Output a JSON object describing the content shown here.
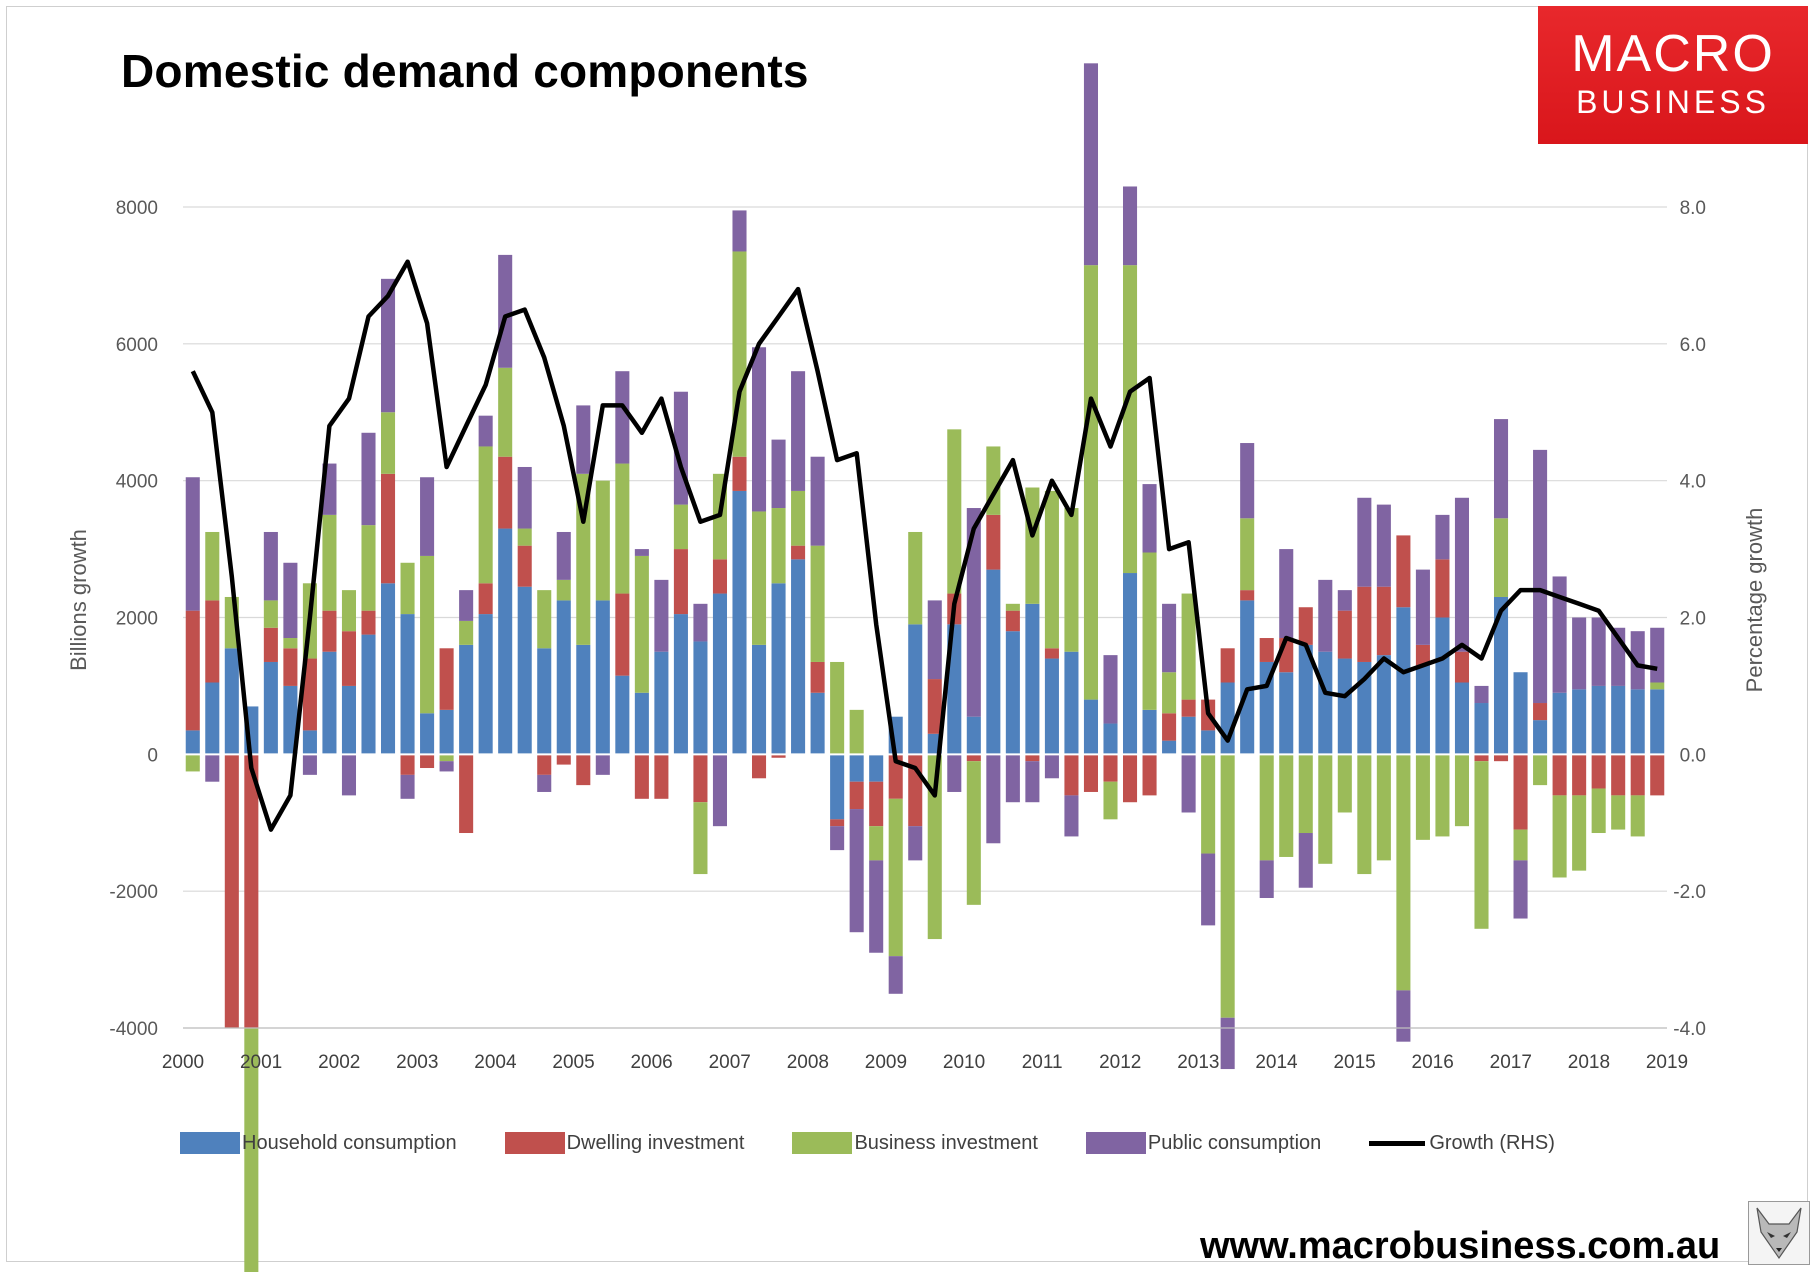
{
  "title": "Domestic demand components",
  "logo": {
    "line1": "MACRO",
    "line2": "BUSINESS",
    "color": "#e21f26"
  },
  "site_url": "www.macrobusiness.com.au",
  "fox_logo": "fox-icon",
  "chart_data": {
    "type": "bar",
    "stacked": true,
    "title": "Domestic demand components",
    "ylabel": "Billions growth",
    "y2label": "Percentage growth",
    "ylim": [
      -4000,
      8000
    ],
    "y_ticks": [
      "-4000",
      "-2000",
      "0",
      "2000",
      "4000",
      "6000",
      "8000"
    ],
    "y2lim": [
      -4.0,
      8.0
    ],
    "y2_ticks": [
      "-4.0",
      "-2.0",
      "0.0",
      "2.0",
      "4.0",
      "6.0",
      "8.0"
    ],
    "x_ticks": [
      "2000",
      "2001",
      "2002",
      "2003",
      "2004",
      "2005",
      "2006",
      "2007",
      "2008",
      "2009",
      "2010",
      "2011",
      "2012",
      "2013",
      "2014",
      "2015",
      "2016",
      "2017",
      "2018",
      "2019"
    ],
    "grid": true,
    "legend_position": "bottom",
    "quarters_per_year": 4,
    "colors": {
      "household": "#4f81bd",
      "dwelling": "#c0504d",
      "business": "#9bbb59",
      "public": "#8064a2",
      "growth": "#000000"
    },
    "series": [
      {
        "name": "Household consumption",
        "key": "household",
        "values": [
          350,
          1050,
          1550,
          700,
          1350,
          1000,
          350,
          1500,
          1000,
          1750,
          2500,
          2050,
          600,
          650,
          1600,
          2050,
          3300,
          2450,
          1550,
          2250,
          1600,
          2250,
          1150,
          900,
          1500,
          2050,
          1650,
          2350,
          3850,
          1600,
          2500,
          2850,
          900,
          -950,
          -400,
          -400,
          550,
          1900,
          300,
          1900,
          550,
          2700,
          1800,
          2200,
          1400,
          1500,
          800,
          450,
          2650,
          650,
          200,
          550,
          350,
          1050,
          2250,
          1350,
          1200,
          1600,
          1500,
          1400,
          1350,
          1450,
          2150,
          1300,
          2000,
          1050,
          750,
          2300,
          1200,
          500,
          900,
          950,
          1000,
          1000,
          950,
          950
        ]
      },
      {
        "name": "Dwelling investment",
        "key": "dwelling",
        "values": [
          1750,
          1200,
          -4000,
          -4000,
          500,
          550,
          1050,
          600,
          800,
          350,
          1600,
          -300,
          -200,
          900,
          -1150,
          450,
          1050,
          600,
          -300,
          -150,
          -450,
          0,
          1200,
          -650,
          -650,
          950,
          -700,
          500,
          500,
          -350,
          -50,
          200,
          450,
          -100,
          -400,
          -650,
          -650,
          -1050,
          800,
          450,
          -100,
          800,
          300,
          -100,
          150,
          -600,
          -550,
          -400,
          -700,
          -600,
          400,
          250,
          450,
          500,
          150,
          350,
          500,
          550,
          0,
          700,
          1100,
          1000,
          1050,
          300,
          850,
          450,
          -100,
          -100,
          -1100,
          250,
          -600,
          -600,
          -500,
          -600,
          -600,
          -600
        ]
      },
      {
        "name": "Business investment",
        "key": "business",
        "values": [
          -250,
          1000,
          750,
          -4000,
          400,
          150,
          1100,
          1400,
          600,
          1250,
          900,
          750,
          2300,
          -100,
          350,
          2000,
          1300,
          250,
          850,
          300,
          2500,
          1750,
          1900,
          2000,
          0,
          650,
          -1050,
          1250,
          3000,
          1950,
          1100,
          800,
          1700,
          1350,
          650,
          -500,
          -2300,
          1350,
          -2700,
          2400,
          -2100,
          1000,
          100,
          1700,
          2300,
          2100,
          6350,
          -550,
          4500,
          2300,
          600,
          1550,
          -1450,
          -3850,
          1050,
          -1550,
          -1500,
          -1150,
          -1600,
          -850,
          -1750,
          -1550,
          -3450,
          -1250,
          -1200,
          -1050,
          -2450,
          1150,
          -450,
          -450,
          -1200,
          -1100,
          -650,
          -500,
          -600,
          100
        ]
      },
      {
        "name": "Public consumption",
        "key": "public",
        "values": [
          1950,
          -400,
          0,
          0,
          1000,
          1100,
          -300,
          750,
          -600,
          1350,
          1950,
          -350,
          1150,
          -150,
          450,
          450,
          1650,
          900,
          -250,
          700,
          1000,
          -300,
          1350,
          100,
          1050,
          1650,
          550,
          -1050,
          600,
          2400,
          1000,
          1750,
          1300,
          -350,
          -1800,
          -1350,
          -550,
          -500,
          1150,
          -550,
          3050,
          -1300,
          -700,
          -600,
          -350,
          -600,
          2950,
          1000,
          1150,
          1000,
          1000,
          -850,
          -1050,
          -750,
          1100,
          -550,
          1300,
          -800,
          1050,
          300,
          1300,
          1200,
          -750,
          1100,
          650,
          2250,
          250,
          1450,
          -850,
          3700,
          1700,
          1050,
          1000,
          850,
          850,
          800
        ]
      }
    ],
    "growth_series": {
      "name": "Growth (RHS)",
      "axis": "right",
      "values": [
        5.6,
        5.0,
        2.6,
        -0.2,
        -1.1,
        -0.6,
        2.0,
        4.8,
        5.2,
        6.4,
        6.7,
        7.2,
        6.3,
        4.2,
        4.8,
        5.4,
        6.4,
        6.5,
        5.8,
        4.8,
        3.4,
        5.1,
        5.1,
        4.7,
        5.2,
        4.2,
        3.4,
        3.5,
        5.3,
        6.0,
        6.4,
        6.8,
        5.6,
        4.3,
        4.4,
        1.9,
        -0.1,
        -0.2,
        -0.6,
        2.2,
        3.3,
        3.8,
        4.3,
        3.2,
        4.0,
        3.5,
        5.2,
        4.5,
        5.3,
        5.5,
        3.0,
        3.1,
        0.6,
        0.2,
        0.95,
        1.0,
        1.7,
        1.6,
        0.9,
        0.85,
        1.1,
        1.4,
        1.2,
        1.3,
        1.4,
        1.6,
        1.4,
        2.1,
        2.4,
        2.4,
        2.3,
        2.2,
        2.1,
        1.7,
        1.3,
        1.25
      ]
    },
    "legend": [
      "Household consumption",
      "Dwelling investment",
      "Business investment",
      "Public consumption",
      "Growth (RHS)"
    ]
  }
}
